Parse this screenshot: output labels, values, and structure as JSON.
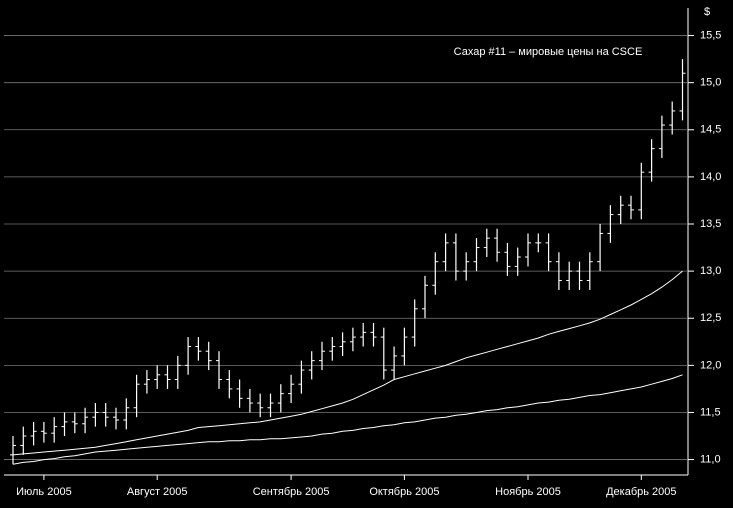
{
  "chart_data": {
    "type": "ohlc",
    "title": "Сахар #11 – мировые цены на CSCE",
    "y_label": "$",
    "color": "#ffffff",
    "grid": true,
    "ylim": [
      10.9,
      15.75
    ],
    "yticks": [
      {
        "value": 11,
        "label": "11,0"
      },
      {
        "value": 11.5,
        "label": "11,5"
      },
      {
        "value": 12,
        "label": "12,0"
      },
      {
        "value": 12.5,
        "label": "12,5"
      },
      {
        "value": 13,
        "label": "13,0"
      },
      {
        "value": 13.5,
        "label": "13,5"
      },
      {
        "value": 14,
        "label": "14,0"
      },
      {
        "value": 14.5,
        "label": "14,5"
      },
      {
        "value": 15,
        "label": "15,0"
      },
      {
        "value": 15.5,
        "label": "15,5"
      }
    ],
    "categories": [
      null,
      null,
      null,
      "Июль 2005",
      null,
      null,
      null,
      null,
      null,
      null,
      null,
      null,
      null,
      null,
      "Август 2005",
      null,
      null,
      null,
      null,
      null,
      null,
      null,
      null,
      null,
      null,
      null,
      null,
      "Сентябрь 2005",
      null,
      null,
      null,
      null,
      null,
      null,
      null,
      null,
      null,
      null,
      "Октябрь 2005",
      null,
      null,
      null,
      null,
      null,
      null,
      null,
      null,
      null,
      null,
      null,
      "Ноябрь 2005",
      null,
      null,
      null,
      null,
      null,
      null,
      null,
      null,
      null,
      null,
      "Декабрь 2005",
      null,
      null,
      null,
      null
    ],
    "open": [
      11.05,
      11.15,
      11.25,
      11.3,
      11.28,
      11.35,
      11.4,
      11.38,
      11.45,
      11.5,
      11.45,
      11.42,
      11.55,
      11.8,
      11.85,
      11.9,
      11.85,
      12.0,
      12.2,
      12.15,
      12.05,
      11.85,
      11.75,
      11.65,
      11.6,
      11.55,
      11.6,
      11.7,
      11.8,
      11.95,
      12.05,
      12.15,
      12.2,
      12.25,
      12.3,
      12.35,
      12.3,
      11.95,
      12.1,
      12.3,
      12.6,
      12.85,
      13.1,
      13.3,
      13.0,
      13.1,
      13.25,
      13.35,
      13.2,
      13.05,
      13.15,
      13.3,
      13.3,
      13.1,
      12.9,
      13.0,
      12.9,
      13.1,
      13.4,
      13.6,
      13.7,
      13.65,
      14.05,
      14.3,
      14.55,
      14.7
    ],
    "high": [
      11.25,
      11.35,
      11.4,
      11.4,
      11.45,
      11.5,
      11.5,
      11.55,
      11.6,
      11.6,
      11.55,
      11.65,
      11.9,
      11.95,
      12.0,
      12.0,
      12.1,
      12.3,
      12.3,
      12.25,
      12.15,
      11.95,
      11.85,
      11.75,
      11.7,
      11.7,
      11.8,
      11.9,
      12.05,
      12.15,
      12.25,
      12.3,
      12.35,
      12.4,
      12.45,
      12.45,
      12.4,
      12.2,
      12.4,
      12.7,
      12.95,
      13.2,
      13.4,
      13.4,
      13.2,
      13.35,
      13.45,
      13.45,
      13.3,
      13.25,
      13.4,
      13.4,
      13.4,
      13.2,
      13.1,
      13.1,
      13.2,
      13.5,
      13.7,
      13.8,
      13.8,
      14.15,
      14.4,
      14.65,
      14.8,
      15.25
    ],
    "low": [
      10.95,
      11.05,
      11.15,
      11.18,
      11.18,
      11.25,
      11.28,
      11.28,
      11.35,
      11.35,
      11.32,
      11.32,
      11.45,
      11.7,
      11.75,
      11.75,
      11.75,
      11.9,
      12.05,
      11.95,
      11.75,
      11.65,
      11.55,
      11.5,
      11.45,
      11.45,
      11.5,
      11.6,
      11.7,
      11.85,
      11.95,
      12.05,
      12.1,
      12.15,
      12.2,
      12.2,
      11.85,
      11.85,
      12.0,
      12.2,
      12.5,
      12.75,
      13.0,
      12.9,
      12.9,
      13.0,
      13.15,
      13.1,
      12.95,
      12.95,
      13.05,
      13.2,
      13.0,
      12.8,
      12.8,
      12.8,
      12.8,
      13.0,
      13.3,
      13.5,
      13.55,
      13.55,
      13.95,
      14.2,
      14.45,
      14.6
    ],
    "close": [
      11.15,
      11.25,
      11.3,
      11.28,
      11.35,
      11.4,
      11.38,
      11.45,
      11.5,
      11.45,
      11.42,
      11.55,
      11.8,
      11.85,
      11.9,
      11.85,
      12.0,
      12.2,
      12.15,
      12.05,
      11.85,
      11.75,
      11.65,
      11.6,
      11.55,
      11.6,
      11.7,
      11.8,
      11.95,
      12.05,
      12.15,
      12.2,
      12.25,
      12.3,
      12.35,
      12.3,
      11.95,
      12.1,
      12.3,
      12.6,
      12.85,
      13.1,
      13.3,
      13.0,
      13.1,
      13.25,
      13.35,
      13.2,
      13.05,
      13.15,
      13.3,
      13.3,
      13.1,
      12.9,
      13.0,
      12.9,
      13.1,
      13.4,
      13.6,
      13.7,
      13.65,
      14.05,
      14.3,
      14.55,
      14.7,
      15.1
    ],
    "series": [
      {
        "color": "#ffffff",
        "values": [
          11.05,
          11.06,
          11.07,
          11.08,
          11.09,
          11.1,
          11.11,
          11.12,
          11.13,
          11.15,
          11.17,
          11.19,
          11.21,
          11.23,
          11.25,
          11.27,
          11.29,
          11.31,
          11.34,
          11.35,
          11.36,
          11.37,
          11.38,
          11.39,
          11.4,
          11.42,
          11.44,
          11.46,
          11.48,
          11.51,
          11.54,
          11.57,
          11.6,
          11.64,
          11.69,
          11.74,
          11.79,
          11.85,
          11.88,
          11.91,
          11.94,
          11.97,
          12.0,
          12.04,
          12.08,
          12.11,
          12.14,
          12.17,
          12.2,
          12.23,
          12.26,
          12.29,
          12.33,
          12.36,
          12.39,
          12.42,
          12.45,
          12.49,
          12.54,
          12.59,
          12.64,
          12.7,
          12.76,
          12.83,
          12.91,
          13.0
        ]
      },
      {
        "color": "#ffffff",
        "values": [
          10.95,
          10.97,
          10.98,
          11.0,
          11.01,
          11.03,
          11.04,
          11.06,
          11.08,
          11.09,
          11.1,
          11.11,
          11.12,
          11.13,
          11.14,
          11.15,
          11.16,
          11.17,
          11.18,
          11.19,
          11.19,
          11.2,
          11.2,
          11.21,
          11.21,
          11.22,
          11.22,
          11.23,
          11.24,
          11.25,
          11.27,
          11.28,
          11.3,
          11.31,
          11.33,
          11.34,
          11.36,
          11.37,
          11.39,
          11.4,
          11.42,
          11.44,
          11.45,
          11.47,
          11.48,
          11.5,
          11.52,
          11.53,
          11.55,
          11.56,
          11.58,
          11.6,
          11.61,
          11.63,
          11.64,
          11.66,
          11.68,
          11.69,
          11.71,
          11.73,
          11.75,
          11.77,
          11.8,
          11.83,
          11.86,
          11.9
        ]
      }
    ]
  }
}
